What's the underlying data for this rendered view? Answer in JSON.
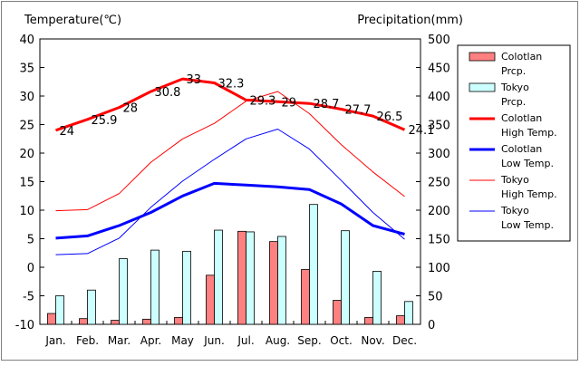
{
  "chart_data": {
    "type": "bar+line",
    "title": "",
    "categories": [
      "Jan.",
      "Feb.",
      "Mar.",
      "Apr.",
      "May",
      "Jun.",
      "Jul.",
      "Aug.",
      "Sep.",
      "Oct.",
      "Nov.",
      "Dec."
    ],
    "y_left": {
      "label": "Temperature(℃)",
      "ylim": [
        -10,
        40
      ],
      "ticks": [
        40,
        35,
        30,
        25,
        20,
        15,
        10,
        5,
        0,
        -5,
        -10
      ]
    },
    "y_right": {
      "label": "Precipitation(mm)",
      "ylim": [
        0,
        500
      ],
      "ticks": [
        500,
        450,
        400,
        350,
        300,
        250,
        200,
        150,
        100,
        50,
        0
      ]
    },
    "grid": false,
    "legend_position": "right",
    "bar_series": [
      {
        "name": "Colotlan Prcp.",
        "legend": [
          "Colotlan",
          "Prcp."
        ],
        "color": "#ff8080",
        "values": [
          19,
          10,
          7,
          9,
          12,
          86,
          163,
          145,
          96,
          42,
          12,
          15
        ]
      },
      {
        "name": "Tokyo Prcp.",
        "legend": [
          "Tokyo",
          "Prcp."
        ],
        "color": "#ccffff",
        "values": [
          50,
          60,
          115,
          130,
          128,
          165,
          162,
          154,
          210,
          164,
          93,
          40
        ]
      }
    ],
    "line_series": [
      {
        "name": "Colotlan High Temp.",
        "legend": [
          "Colotlan",
          "High Temp."
        ],
        "color": "#ff0000",
        "width": 3,
        "labeled": true,
        "values": [
          24,
          25.9,
          28,
          30.8,
          33,
          32.3,
          29.3,
          29,
          28.7,
          27.7,
          26.5,
          24.1
        ],
        "labels": [
          "24",
          "25.9",
          "28",
          "30.8",
          "33",
          "32.3",
          "29.3",
          "29",
          "28.7",
          "27.7",
          "26.5",
          "24.1"
        ]
      },
      {
        "name": "Colotlan Low Temp.",
        "legend": [
          "Colotlan",
          "Low Temp."
        ],
        "color": "#0000ff",
        "width": 3,
        "labeled": false,
        "values": [
          5.1,
          5.5,
          7.3,
          9.6,
          12.5,
          14.7,
          14.4,
          14.1,
          13.6,
          11.1,
          7.3,
          5.8
        ]
      },
      {
        "name": "Tokyo High Temp.",
        "legend": [
          "Tokyo",
          "High Temp."
        ],
        "color": "#ff0000",
        "width": 1,
        "labeled": false,
        "values": [
          9.9,
          10.1,
          12.9,
          18.4,
          22.5,
          25.2,
          29.1,
          30.8,
          26.9,
          21.5,
          16.7,
          12.4
        ]
      },
      {
        "name": "Tokyo Low Temp.",
        "legend": [
          "Tokyo",
          "Low Temp."
        ],
        "color": "#0000ff",
        "width": 1,
        "labeled": false,
        "values": [
          2.2,
          2.4,
          5.1,
          10.5,
          15.1,
          18.9,
          22.5,
          24.2,
          20.7,
          15.2,
          9.6,
          4.9
        ]
      }
    ]
  }
}
